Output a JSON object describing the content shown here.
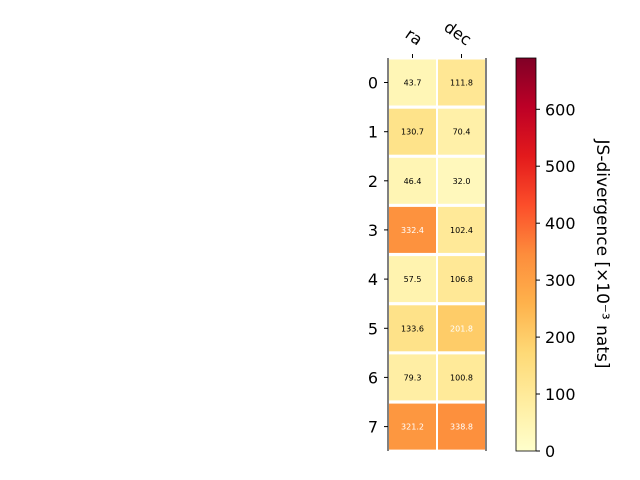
{
  "chart_data": {
    "type": "heatmap",
    "columns": [
      "ra",
      "dec"
    ],
    "rows": [
      "0",
      "1",
      "2",
      "3",
      "4",
      "5",
      "6",
      "7"
    ],
    "values": [
      [
        43.7,
        111.8
      ],
      [
        130.7,
        70.4
      ],
      [
        46.4,
        32.0
      ],
      [
        332.4,
        102.4
      ],
      [
        57.5,
        106.8
      ],
      [
        133.6,
        201.8
      ],
      [
        79.3,
        100.8
      ],
      [
        321.2,
        338.8
      ]
    ],
    "value_labels": [
      [
        "43.7",
        "111.8"
      ],
      [
        "130.7",
        "70.4"
      ],
      [
        "46.4",
        "32.0"
      ],
      [
        "332.4",
        "102.4"
      ],
      [
        "57.5",
        "106.8"
      ],
      [
        "133.6",
        "201.8"
      ],
      [
        "79.3",
        "100.8"
      ],
      [
        "321.2",
        "338.8"
      ]
    ],
    "colorbar": {
      "label": "JS-divergence [×10⁻³ nats]",
      "range": [
        0,
        690
      ],
      "ticks": [
        0,
        100,
        200,
        300,
        400,
        500,
        600
      ],
      "tick_labels": [
        "0",
        "100",
        "200",
        "300",
        "400",
        "500",
        "600"
      ],
      "colormap": "YlOrRd",
      "colormap_stops": [
        "#ffffcc",
        "#ffeda0",
        "#fed976",
        "#feb24c",
        "#fd8d3c",
        "#fc4e2a",
        "#e31a1c",
        "#bd0026",
        "#800026"
      ]
    },
    "text_color_threshold": 200,
    "text_colors": {
      "dark": "#000000",
      "light": "#ffffff"
    }
  }
}
